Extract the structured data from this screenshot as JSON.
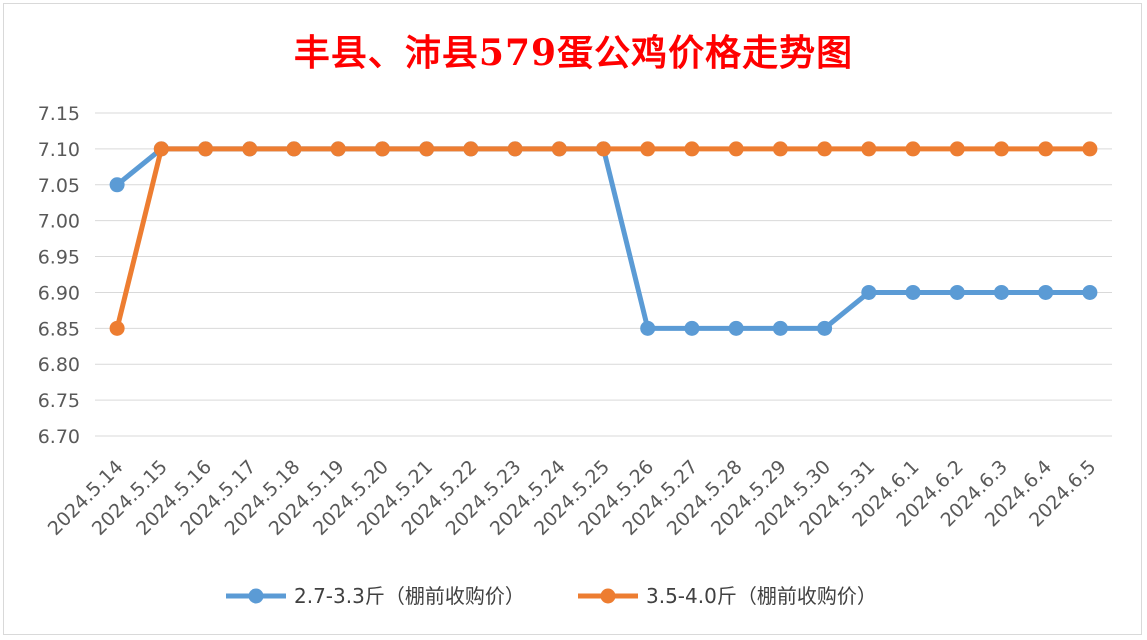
{
  "chart_data": {
    "type": "line",
    "title": "丰县、沛县579蛋公鸡价格走势图",
    "title_color": "#ff0000",
    "xlabel": "",
    "ylabel": "",
    "categories": [
      "2024.5.14",
      "2024.5.15",
      "2024.5.16",
      "2024.5.17",
      "2024.5.18",
      "2024.5.19",
      "2024.5.20",
      "2024.5.21",
      "2024.5.22",
      "2024.5.23",
      "2024.5.24",
      "2024.5.25",
      "2024.5.26",
      "2024.5.27",
      "2024.5.28",
      "2024.5.29",
      "2024.5.30",
      "2024.5.31",
      "2024.6.1",
      "2024.6.2",
      "2024.6.3",
      "2024.6.4",
      "2024.6.5"
    ],
    "ylim": [
      6.7,
      7.15
    ],
    "yticks": [
      "7.15",
      "7.10",
      "7.05",
      "7.00",
      "6.95",
      "6.90",
      "6.85",
      "6.80",
      "6.75",
      "6.70"
    ],
    "grid": true,
    "legend_position": "bottom",
    "series": [
      {
        "name": "2.7-3.3斤（棚前收购价）",
        "color": "#5b9bd5",
        "values": [
          7.05,
          7.1,
          7.1,
          7.1,
          7.1,
          7.1,
          7.1,
          7.1,
          7.1,
          7.1,
          7.1,
          7.1,
          6.85,
          6.85,
          6.85,
          6.85,
          6.85,
          6.9,
          6.9,
          6.9,
          6.9,
          6.9,
          6.9
        ]
      },
      {
        "name": "3.5-4.0斤（棚前收购价）",
        "color": "#ed7d31",
        "values": [
          6.85,
          7.1,
          7.1,
          7.1,
          7.1,
          7.1,
          7.1,
          7.1,
          7.1,
          7.1,
          7.1,
          7.1,
          7.1,
          7.1,
          7.1,
          7.1,
          7.1,
          7.1,
          7.1,
          7.1,
          7.1,
          7.1,
          7.1
        ]
      }
    ]
  }
}
